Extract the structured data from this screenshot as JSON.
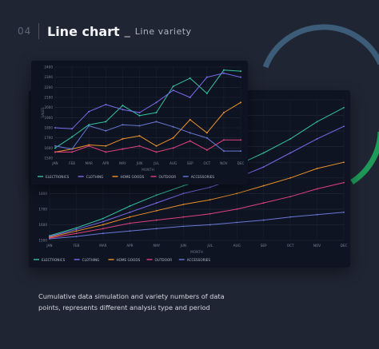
{
  "header": {
    "number": "04",
    "title": "Line chart",
    "dash": "_",
    "subtitle": "Line variety"
  },
  "caption": "Cumulative data simulation and variety numbers of data points, represents different analysis type and period",
  "colors": {
    "background": "#1f2533",
    "card": "#0e1422",
    "ring_blue": "#3c5c78",
    "ring_green": "#1f9a58",
    "electronics": "#34c3a0",
    "clothing": "#7b6cf0",
    "home_goods": "#f0932b",
    "outdoor": "#e2417f",
    "accessories": "#6a78d8"
  },
  "chart_data": [
    {
      "type": "line",
      "xlabel": "MONTH",
      "ylabel": "SALES",
      "categories": [
        "JAN",
        "FEB",
        "MAR",
        "APR",
        "MAY",
        "JUN",
        "JUL",
        "AUG",
        "SEP",
        "OCT",
        "NOV",
        "DEC"
      ],
      "ylim": [
        1500,
        2400
      ],
      "yticks": [
        1500,
        1600,
        1700,
        1800,
        1900,
        2000,
        2100,
        2200,
        2300,
        2400
      ],
      "grid": true,
      "legend": "bottom",
      "series": [
        {
          "name": "ELECTRONICS",
          "color": "#34c3a0",
          "values": [
            1600,
            1710,
            1830,
            1860,
            2020,
            1920,
            1950,
            2210,
            2290,
            2140,
            2370,
            2360
          ]
        },
        {
          "name": "CLOTHING",
          "color": "#7b6cf0",
          "values": [
            1800,
            1790,
            1960,
            2030,
            1980,
            1950,
            2050,
            2170,
            2100,
            2300,
            2340,
            2300
          ]
        },
        {
          "name": "HOME GOODS",
          "color": "#f0932b",
          "values": [
            1560,
            1590,
            1630,
            1620,
            1690,
            1720,
            1620,
            1700,
            1880,
            1750,
            1950,
            2050
          ]
        },
        {
          "name": "OUTDOOR",
          "color": "#e2417f",
          "values": [
            1560,
            1560,
            1620,
            1560,
            1590,
            1620,
            1560,
            1600,
            1670,
            1580,
            1680,
            1680
          ]
        },
        {
          "name": "ACCESSORIES",
          "color": "#6a78d8",
          "values": [
            1620,
            1590,
            1820,
            1770,
            1830,
            1820,
            1860,
            1810,
            1750,
            1700,
            1570,
            1570
          ]
        }
      ]
    },
    {
      "type": "line",
      "xlabel": "MONTH",
      "ylabel": "",
      "categories": [
        "JAN",
        "FEB",
        "MAR",
        "APR",
        "MAY",
        "JUN",
        "JUL",
        "AUG",
        "SEP",
        "OCT",
        "NOV",
        "DEC"
      ],
      "ylim": [
        1500,
        2400
      ],
      "yticks": [
        1500,
        1600,
        1700,
        1800,
        1900,
        2000,
        2100,
        2200,
        2300,
        2400
      ],
      "grid": true,
      "legend": "bottom",
      "series": [
        {
          "name": "ELECTRONICS",
          "color": "#34c3a0",
          "values": [
            1530,
            1580,
            1640,
            1720,
            1790,
            1850,
            1900,
            1980,
            2060,
            2150,
            2260,
            2350
          ]
        },
        {
          "name": "CLOTHING",
          "color": "#7b6cf0",
          "values": [
            1525,
            1570,
            1620,
            1680,
            1740,
            1800,
            1840,
            1900,
            1970,
            2060,
            2150,
            2230
          ]
        },
        {
          "name": "HOME GOODS",
          "color": "#f0932b",
          "values": [
            1520,
            1560,
            1600,
            1650,
            1690,
            1730,
            1760,
            1800,
            1850,
            1900,
            1960,
            2000
          ]
        },
        {
          "name": "OUTDOOR",
          "color": "#e2417f",
          "values": [
            1515,
            1545,
            1575,
            1610,
            1630,
            1650,
            1670,
            1700,
            1740,
            1780,
            1830,
            1870
          ]
        },
        {
          "name": "ACCESSORIES",
          "color": "#6a78d8",
          "values": [
            1510,
            1525,
            1545,
            1560,
            1575,
            1590,
            1600,
            1615,
            1630,
            1650,
            1665,
            1680
          ]
        }
      ]
    }
  ]
}
